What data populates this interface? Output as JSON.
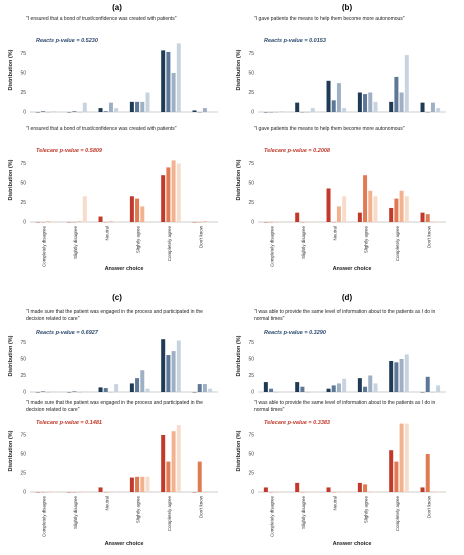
{
  "figure": {
    "labels": [
      "(a)",
      "(b)",
      "(c)",
      "(d)"
    ],
    "xlabel": "Answer choice",
    "ylabel": "Distribution (%)"
  },
  "colors": {
    "reacts": [
      "#1f3a55",
      "#5d7896",
      "#9fb0c4",
      "#c9d3df"
    ],
    "telecare": [
      "#c0392b",
      "#e07a52",
      "#f2b28f",
      "#f8dccb"
    ],
    "reacts_label": "#2b4a6f",
    "telecare_label": "#c0392b",
    "axis": "#999999"
  },
  "chart_data": [
    {
      "type": "bar",
      "panel": "(a)",
      "group": "Reacts",
      "title": "\"I ensured that a bond of trust/confidence was created with patients\"",
      "stat_label": "Reacts   p-value = 0.5230",
      "categories": [
        "Completely disagree",
        "Slightly disagree",
        "Neutral",
        "Slightly agree",
        "Completely agree",
        "Don't know"
      ],
      "ylim": [
        0,
        100
      ],
      "yticks": [
        0,
        25,
        50,
        75
      ],
      "show_xticks": false,
      "series": [
        {
          "values": [
            0,
            0,
            5,
            13,
            79,
            2
          ]
        },
        {
          "values": [
            1,
            1,
            1,
            13,
            77,
            0
          ]
        },
        {
          "values": [
            0,
            0,
            12,
            13,
            50,
            5
          ]
        },
        {
          "values": [
            1,
            12,
            5,
            25,
            88,
            0
          ]
        }
      ]
    },
    {
      "type": "bar",
      "panel": "(b)",
      "group": "Reacts",
      "title": "\"I gave patients the means to help them become more autonomous\"",
      "stat_label": "Reacts   p-value = 0.0153",
      "categories": [
        "Completely disagree",
        "Slightly disagree",
        "Neutral",
        "Slightly agree",
        "Completely agree",
        "Don't know"
      ],
      "ylim": [
        0,
        100
      ],
      "yticks": [
        0,
        25,
        50,
        75
      ],
      "show_xticks": false,
      "series": [
        {
          "values": [
            0,
            12,
            40,
            25,
            13,
            12
          ]
        },
        {
          "values": [
            0,
            0,
            15,
            23,
            45,
            0
          ]
        },
        {
          "values": [
            0,
            0,
            37,
            25,
            25,
            12
          ]
        },
        {
          "values": [
            1,
            5,
            5,
            13,
            73,
            5
          ]
        }
      ]
    },
    {
      "type": "bar",
      "panel": "(a)",
      "group": "Telecare",
      "title": "\"I ensured that a bond of trust/confidence was created with patients\"",
      "stat_label": "Telecare   p-value = 0.5809",
      "categories": [
        "Completely disagree",
        "Slightly disagree",
        "Neutral",
        "Slightly agree",
        "Completely agree",
        "Don't know"
      ],
      "ylim": [
        0,
        100
      ],
      "yticks": [
        0,
        25,
        50,
        75
      ],
      "show_xticks": true,
      "series": [
        {
          "values": [
            0,
            0,
            7,
            33,
            60,
            0
          ]
        },
        {
          "values": [
            0,
            0,
            0,
            30,
            70,
            0
          ]
        },
        {
          "values": [
            1,
            1,
            1,
            20,
            79,
            1
          ]
        },
        {
          "values": [
            1,
            33,
            1,
            1,
            75,
            1
          ]
        }
      ]
    },
    {
      "type": "bar",
      "panel": "(b)",
      "group": "Telecare",
      "title": "\"I gave patients the means to help them become more autonomous\"",
      "stat_label": "Telecare   p-value = 0.2008",
      "categories": [
        "Completely disagree",
        "Slightly disagree",
        "Neutral",
        "Slightly agree",
        "Completely agree",
        "Don't know"
      ],
      "ylim": [
        0,
        100
      ],
      "yticks": [
        0,
        25,
        50,
        75
      ],
      "show_xticks": true,
      "series": [
        {
          "values": [
            0,
            12,
            43,
            12,
            18,
            12
          ]
        },
        {
          "values": [
            0,
            0,
            0,
            60,
            30,
            10
          ]
        },
        {
          "values": [
            0,
            0,
            20,
            40,
            40,
            0
          ]
        },
        {
          "values": [
            1,
            1,
            33,
            33,
            33,
            1
          ]
        }
      ]
    },
    {
      "type": "bar",
      "panel": "(c)",
      "group": "Reacts",
      "title": "\"I made sure that the patient was engaged in the process and participated in the decision related to care\"",
      "stat_label": "Reacts   p-value = 0.6927",
      "categories": [
        "Completely disagree",
        "Slightly disagree",
        "Neutral",
        "Slightly agree",
        "Completely agree",
        "Don't know"
      ],
      "ylim": [
        0,
        100
      ],
      "yticks": [
        0,
        25,
        50,
        75
      ],
      "show_xticks": false,
      "series": [
        {
          "values": [
            0,
            0,
            7,
            13,
            80,
            0
          ]
        },
        {
          "values": [
            1,
            1,
            6,
            21,
            56,
            12
          ]
        },
        {
          "values": [
            0,
            0,
            0,
            33,
            62,
            12
          ]
        },
        {
          "values": [
            1,
            1,
            12,
            5,
            78,
            5
          ]
        }
      ]
    },
    {
      "type": "bar",
      "panel": "(d)",
      "group": "Reacts",
      "title": "\"I was able to provide the same level of information about to the patients as I do in normal times\"",
      "stat_label": "Reacts   p-value = 0.3290",
      "categories": [
        "Completely disagree",
        "Slightly disagree",
        "Neutral",
        "Slightly agree",
        "Completely agree",
        "Don't know"
      ],
      "ylim": [
        0,
        100
      ],
      "yticks": [
        0,
        25,
        50,
        75
      ],
      "show_xticks": false,
      "series": [
        {
          "values": [
            15,
            15,
            5,
            21,
            47,
            0
          ]
        },
        {
          "values": [
            5,
            8,
            10,
            8,
            45,
            23
          ]
        },
        {
          "values": [
            0,
            0,
            13,
            25,
            50,
            0
          ]
        },
        {
          "values": [
            0,
            0,
            20,
            13,
            57,
            10
          ]
        }
      ]
    },
    {
      "type": "bar",
      "panel": "(c)",
      "group": "Telecare",
      "title": "\"I made sure that the patient was engaged in the process and participated in the decision related to care\"",
      "stat_label": "Telecare   p-value = 0.1481",
      "categories": [
        "Completely disagree",
        "Slightly disagree",
        "Neutral",
        "Slightly agree",
        "Completely agree",
        "Don't know"
      ],
      "ylim": [
        0,
        100
      ],
      "yticks": [
        0,
        25,
        50,
        75
      ],
      "show_xticks": true,
      "series": [
        {
          "values": [
            0,
            0,
            6,
            19,
            75,
            0
          ]
        },
        {
          "values": [
            0,
            0,
            0,
            20,
            40,
            40
          ]
        },
        {
          "values": [
            0,
            0,
            0,
            20,
            80,
            0
          ]
        },
        {
          "values": [
            1,
            1,
            1,
            20,
            88,
            1
          ]
        }
      ]
    },
    {
      "type": "bar",
      "panel": "(d)",
      "group": "Telecare",
      "title": "\"I was able to provide the same level of information about to the patients as I do in normal times\"",
      "stat_label": "Telecare   p-value = 0.3383",
      "categories": [
        "Completely disagree",
        "Slightly disagree",
        "Neutral",
        "Slightly agree",
        "Completely agree",
        "Don't know"
      ],
      "ylim": [
        0,
        100
      ],
      "yticks": [
        0,
        25,
        50,
        75
      ],
      "show_xticks": true,
      "series": [
        {
          "values": [
            6,
            12,
            6,
            12,
            55,
            6
          ]
        },
        {
          "values": [
            0,
            0,
            0,
            10,
            40,
            50
          ]
        },
        {
          "values": [
            0,
            0,
            0,
            0,
            90,
            0
          ]
        },
        {
          "values": [
            1,
            1,
            1,
            1,
            90,
            1
          ]
        }
      ]
    }
  ]
}
